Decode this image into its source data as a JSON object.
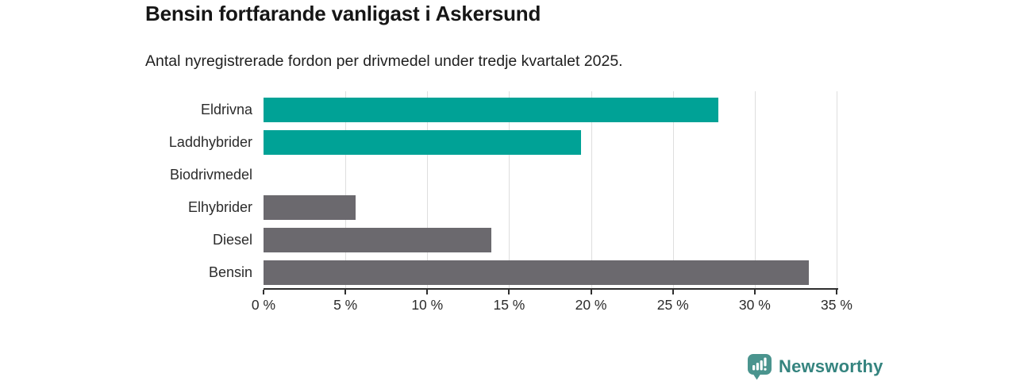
{
  "header": {
    "title": "Bensin fortfarande vanligast i Askersund",
    "subtitle": "Antal nyregistrerade fordon per drivmedel under tredje kvartalet 2025."
  },
  "chart_data": {
    "type": "bar",
    "orientation": "horizontal",
    "title": "Bensin fortfarande vanligast i Askersund",
    "xlabel": "",
    "ylabel": "",
    "unit": "%",
    "categories": [
      "Eldrivna",
      "Laddhybrider",
      "Biodrivmedel",
      "Elhybrider",
      "Diesel",
      "Bensin"
    ],
    "values": [
      27.8,
      19.4,
      0,
      5.6,
      13.9,
      33.3
    ],
    "bar_colors": [
      "#00a296",
      "#00a296",
      "#6b696e",
      "#6b696e",
      "#6b696e",
      "#6b696e"
    ],
    "xlim": [
      0,
      35
    ],
    "x_ticks": [
      0,
      5,
      10,
      15,
      20,
      25,
      30,
      35
    ],
    "x_tick_labels": [
      "0 %",
      "5 %",
      "10 %",
      "15 %",
      "20 %",
      "25 %",
      "30 %",
      "35 %"
    ],
    "grid": "vertical-gridlines-on",
    "legend": "none"
  },
  "style": {
    "accent_teal": "#00a296",
    "bar_gray": "#6b696e",
    "gridline_color": "#dedede",
    "axis_color": "#2e2e2e",
    "text_color": "#1f1f1f"
  },
  "footer": {
    "brand": "Newsworthy",
    "brand_text_color": "#35847f",
    "brand_icon": "newsworthy-speech-bubble-barchart-icon",
    "brand_icon_color": "#4a948e"
  }
}
